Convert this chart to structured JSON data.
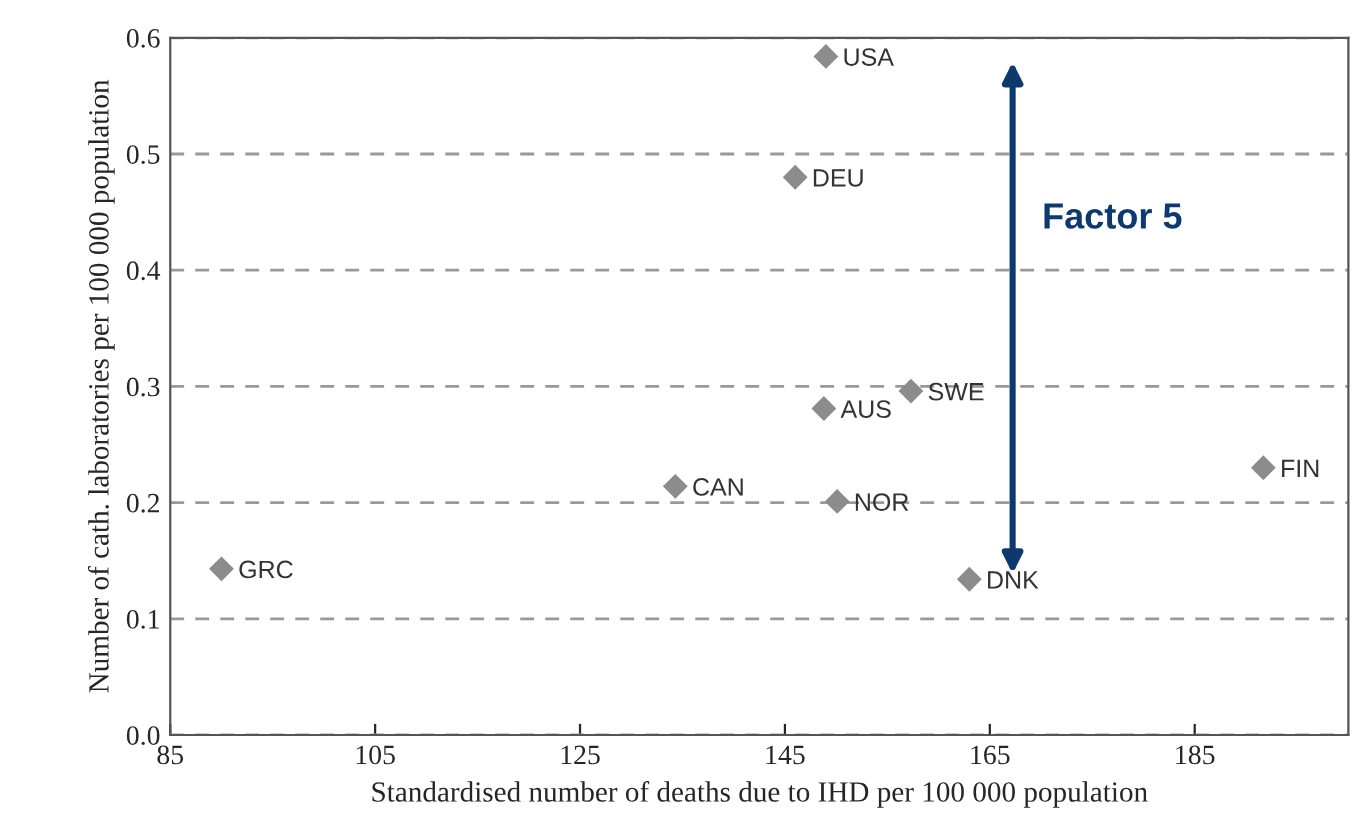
{
  "chart_data": {
    "type": "scatter",
    "xlabel": "Standardised number of deaths due to IHD per 100 000 population",
    "ylabel": "Number of cath. laboratories per 100 000 population",
    "series": [
      {
        "name": "USA",
        "color": "#8c8c8c",
        "x": [
          149.0
        ],
        "values": [
          0.584
        ]
      },
      {
        "name": "DEU",
        "color": "#8c8c8c",
        "x": [
          146.0
        ],
        "values": [
          0.48
        ]
      },
      {
        "name": "AUS",
        "color": "#8c8c8c",
        "x": [
          148.8
        ],
        "values": [
          0.281
        ]
      },
      {
        "name": "SWE",
        "color": "#8c8c8c",
        "x": [
          157.3
        ],
        "values": [
          0.296
        ]
      },
      {
        "name": "CAN",
        "color": "#8c8c8c",
        "x": [
          134.3
        ],
        "values": [
          0.214
        ]
      },
      {
        "name": "NOR",
        "color": "#8c8c8c",
        "x": [
          150.1
        ],
        "values": [
          0.201
        ]
      },
      {
        "name": "DNK",
        "color": "#8c8c8c",
        "x": [
          163.0
        ],
        "values": [
          0.134
        ]
      },
      {
        "name": "GRC",
        "color": "#8c8c8c",
        "x": [
          90.0
        ],
        "values": [
          0.143
        ]
      },
      {
        "name": "FIN",
        "color": "#8c8c8c",
        "x": [
          191.7
        ],
        "values": [
          0.23
        ]
      }
    ],
    "marker": "diamond",
    "xlim": [
      85,
      200
    ],
    "xticks": [
      85,
      105,
      125,
      145,
      165,
      185
    ],
    "ylim": [
      0,
      0.6
    ],
    "yticks": [
      {
        "value": 0,
        "label": "0.0"
      },
      0.1,
      0.2,
      0.3,
      0.4,
      0.5,
      0.6
    ],
    "grid": "y",
    "annotations": [
      "Factor 5"
    ]
  }
}
